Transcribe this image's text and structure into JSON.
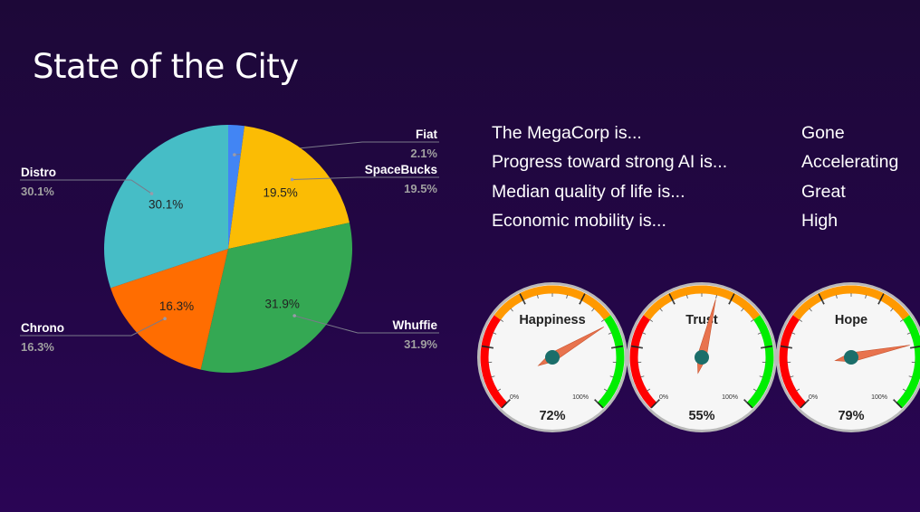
{
  "page": {
    "title": "State of the City"
  },
  "chart_data": [
    {
      "type": "pie",
      "slices": [
        {
          "label": "Fiat",
          "value": 2.1,
          "display": "2.1%",
          "color": "#4285f4"
        },
        {
          "label": "SpaceBucks",
          "value": 19.5,
          "display": "19.5%",
          "color": "#fbbc04"
        },
        {
          "label": "Whuffie",
          "value": 31.9,
          "display": "31.9%",
          "color": "#34a853"
        },
        {
          "label": "Chrono",
          "value": 16.3,
          "display": "16.3%",
          "color": "#ff6d01"
        },
        {
          "label": "Distro",
          "value": 30.1,
          "display": "30.1%",
          "color": "#46bdc6"
        }
      ]
    },
    {
      "type": "gauge",
      "min_label": "0%",
      "max_label": "100%",
      "gauges": [
        {
          "label": "Happiness",
          "value": 72,
          "display": "72%"
        },
        {
          "label": "Trust",
          "value": 55,
          "display": "55%"
        },
        {
          "label": "Hope",
          "value": 79,
          "display": "79%"
        }
      ]
    }
  ],
  "status": [
    {
      "label": "The MegaCorp is...",
      "value": "Gone"
    },
    {
      "label": "Progress toward strong AI is...",
      "value": "Accelerating"
    },
    {
      "label": "Median quality of life is...",
      "value": "Great"
    },
    {
      "label": "Economic mobility is...",
      "value": "High"
    }
  ],
  "colors": {
    "label_text": "#ffffff",
    "percent_text": "#a0a0a0",
    "gauge_red": "#ff0000",
    "gauge_orange": "#ff9900",
    "gauge_green": "#00ee00",
    "needle": "#e8734e",
    "hub": "#1b6e6a"
  }
}
